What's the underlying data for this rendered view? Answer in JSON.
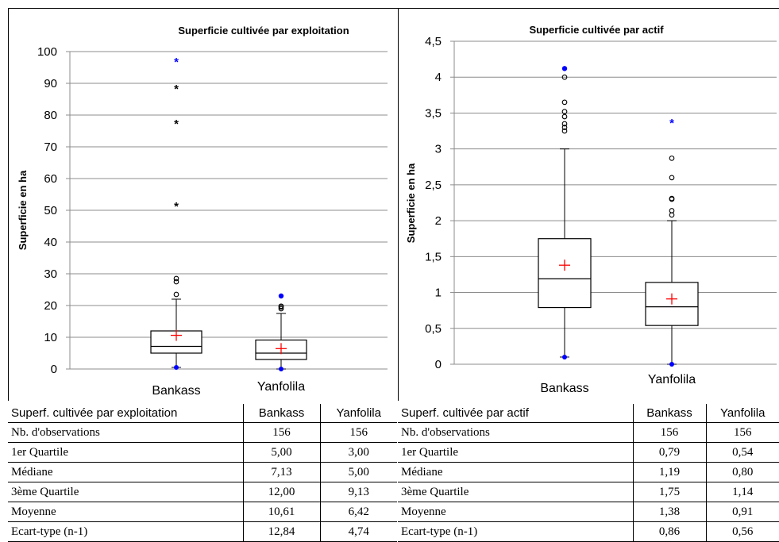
{
  "chart_data": [
    {
      "type": "box",
      "title": "Superficie cultivée par exploitation",
      "ylabel": "Superficie en ha",
      "ylim": [
        0,
        100
      ],
      "yticks": [
        "0",
        "10",
        "20",
        "30",
        "40",
        "50",
        "60",
        "70",
        "80",
        "90",
        "100"
      ],
      "categories": [
        "Bankass",
        "Yanfolila"
      ],
      "boxes": [
        {
          "name": "Bankass",
          "min": 0.5,
          "q1": 5.0,
          "median": 7.13,
          "q3": 12.0,
          "mean": 10.61,
          "whisker_high": 22.0,
          "max": 97.0,
          "outliers_circle": [
            23.5,
            27.5,
            28.5
          ],
          "outliers_star": [
            51.5,
            77.5,
            88.5
          ]
        },
        {
          "name": "Yanfolila",
          "min": 0.0,
          "q1": 3.0,
          "median": 5.0,
          "q3": 9.13,
          "mean": 6.42,
          "whisker_high": 17.5,
          "max": 23.0,
          "outliers_circle": [
            19.0,
            19.5,
            19.8
          ],
          "outliers_star": []
        }
      ]
    },
    {
      "type": "box",
      "title": "Superficie cultivée par actif",
      "ylabel": "Superficie en ha",
      "ylim": [
        0,
        4.5
      ],
      "yticks": [
        "0",
        "0,5",
        "1",
        "1,5",
        "2",
        "2,5",
        "3",
        "3,5",
        "4",
        "4,5"
      ],
      "categories": [
        "Bankass",
        "Yanfolila"
      ],
      "boxes": [
        {
          "name": "Bankass",
          "min": 0.1,
          "q1": 0.79,
          "median": 1.19,
          "q3": 1.75,
          "mean": 1.38,
          "whisker_high": 3.0,
          "max": 4.12,
          "outliers_circle": [
            3.25,
            3.3,
            3.35,
            3.45,
            3.52,
            3.65,
            4.0
          ],
          "outliers_star": []
        },
        {
          "name": "Yanfolila",
          "min": 0.0,
          "q1": 0.54,
          "median": 0.8,
          "q3": 1.14,
          "mean": 0.91,
          "whisker_high": 2.0,
          "max": 3.37,
          "outliers_circle": [
            2.08,
            2.14,
            2.3,
            2.31,
            2.6,
            2.87
          ],
          "outliers_star": [],
          "max_marker": "star"
        }
      ]
    }
  ],
  "tables": [
    {
      "header": [
        "Superf. cultivée par exploitation",
        "Bankass",
        "Yanfolila"
      ],
      "rows": [
        [
          "Nb. d'observations",
          "156",
          "156"
        ],
        [
          "1er Quartile",
          "5,00",
          "3,00"
        ],
        [
          "Médiane",
          "7,13",
          "5,00"
        ],
        [
          "3ème Quartile",
          "12,00",
          "9,13"
        ],
        [
          "Moyenne",
          "10,61",
          "6,42"
        ],
        [
          "Ecart-type (n-1)",
          "12,84",
          "4,74"
        ]
      ]
    },
    {
      "header": [
        "Superf. cultivée par actif",
        "Bankass",
        "Yanfolila"
      ],
      "rows": [
        [
          "Nb. d'observations",
          "156",
          "156"
        ],
        [
          "1er Quartile",
          "0,79",
          "0,54"
        ],
        [
          "Médiane",
          "1,19",
          "0,80"
        ],
        [
          "3ème Quartile",
          "1,75",
          "1,14"
        ],
        [
          "Moyenne",
          "1,38",
          "0,91"
        ],
        [
          "Ecart-type (n-1)",
          "0,86",
          "0,56"
        ]
      ]
    }
  ],
  "colors": {
    "mean_marker": "#ff0000",
    "extreme_marker": "#0000ff",
    "box": "#000000",
    "grid": "#808080"
  }
}
